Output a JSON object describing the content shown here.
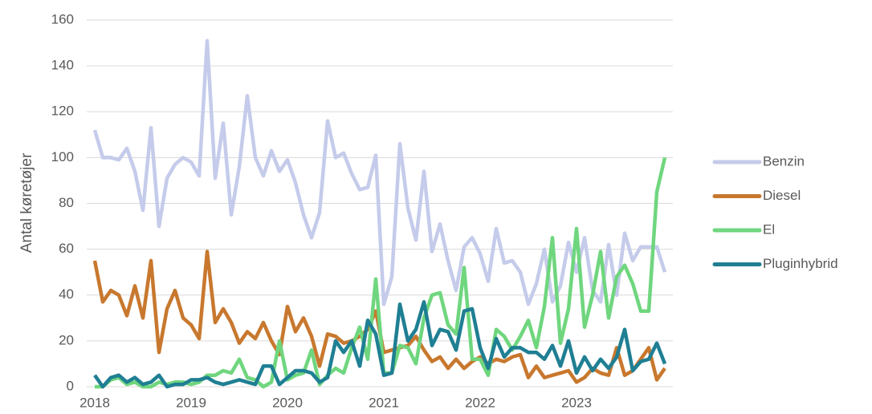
{
  "chart_data": {
    "type": "line",
    "y_label": "Antal køretøjer",
    "categories": [
      "2018",
      null,
      null,
      null,
      null,
      null,
      null,
      null,
      null,
      null,
      null,
      null,
      "2019",
      null,
      null,
      null,
      null,
      null,
      null,
      null,
      null,
      null,
      null,
      null,
      "2020",
      null,
      null,
      null,
      null,
      null,
      null,
      null,
      null,
      null,
      null,
      null,
      "2021",
      null,
      null,
      null,
      null,
      null,
      null,
      null,
      null,
      null,
      null,
      null,
      "2022",
      null,
      null,
      null,
      null,
      null,
      null,
      null,
      null,
      null,
      null,
      null,
      "2023",
      null,
      null,
      null,
      null,
      null,
      null,
      null,
      null,
      null,
      null,
      null
    ],
    "series": [
      {
        "name": "Benzin",
        "color": "#c5cbea",
        "values": [
          112,
          100,
          100,
          99,
          104,
          94,
          77,
          113,
          70,
          91,
          97,
          100,
          98,
          92,
          151,
          91,
          115,
          75,
          96,
          127,
          100,
          92,
          103,
          94,
          99,
          89,
          75,
          65,
          76,
          116,
          100,
          102,
          93,
          86,
          87,
          101,
          36,
          48,
          106,
          78,
          64,
          94,
          59,
          71,
          55,
          42,
          61,
          65,
          58,
          46,
          69,
          54,
          55,
          50,
          36,
          45,
          60,
          37,
          44,
          63,
          50,
          65,
          42,
          37,
          62,
          40,
          67,
          55,
          61,
          61,
          61,
          50
        ]
      },
      {
        "name": "Diesel",
        "color": "#c8782e",
        "values": [
          55,
          37,
          42,
          40,
          31,
          44,
          30,
          55,
          15,
          34,
          42,
          30,
          27,
          21,
          59,
          28,
          34,
          28,
          19,
          24,
          21,
          28,
          20,
          14,
          35,
          24,
          30,
          22,
          9,
          23,
          22,
          19,
          20,
          22,
          25,
          33,
          15,
          16,
          17,
          18,
          22,
          16,
          11,
          13,
          8,
          12,
          8,
          11,
          13,
          10,
          12,
          11,
          13,
          14,
          4,
          9,
          4,
          5,
          6,
          7,
          2,
          4,
          8,
          6,
          5,
          17,
          5,
          7,
          12,
          17,
          3,
          8
        ]
      },
      {
        "name": "El",
        "color": "#6fd67e",
        "values": [
          0,
          0,
          3,
          4,
          1,
          2,
          0,
          0,
          2,
          1,
          2,
          2,
          1,
          2,
          5,
          5,
          7,
          6,
          12,
          4,
          3,
          0,
          2,
          20,
          3,
          5,
          6,
          16,
          1,
          5,
          8,
          6,
          17,
          26,
          12,
          47,
          6,
          6,
          18,
          17,
          10,
          30,
          40,
          41,
          27,
          23,
          52,
          12,
          12,
          5,
          25,
          22,
          16,
          22,
          29,
          17,
          35,
          65,
          19,
          34,
          69,
          26,
          40,
          59,
          30,
          48,
          53,
          45,
          33,
          33,
          85,
          100
        ]
      },
      {
        "name": "Pluginhybrid",
        "color": "#1f7f93",
        "values": [
          5,
          0,
          4,
          5,
          2,
          4,
          1,
          2,
          5,
          0,
          1,
          1,
          3,
          3,
          4,
          2,
          1,
          2,
          3,
          2,
          1,
          9,
          9,
          1,
          4,
          7,
          7,
          6,
          2,
          4,
          20,
          15,
          20,
          9,
          29,
          23,
          5,
          6,
          36,
          20,
          25,
          37,
          18,
          25,
          24,
          16,
          33,
          34,
          17,
          8,
          21,
          13,
          17,
          17,
          15,
          15,
          12,
          18,
          9,
          20,
          6,
          13,
          7,
          12,
          8,
          13,
          25,
          7,
          11,
          12,
          19,
          10
        ]
      }
    ],
    "ylim": [
      0,
      160
    ],
    "yticks": [
      0,
      20,
      40,
      60,
      80,
      100,
      120,
      140,
      160
    ],
    "grid": true,
    "legend": "right"
  }
}
